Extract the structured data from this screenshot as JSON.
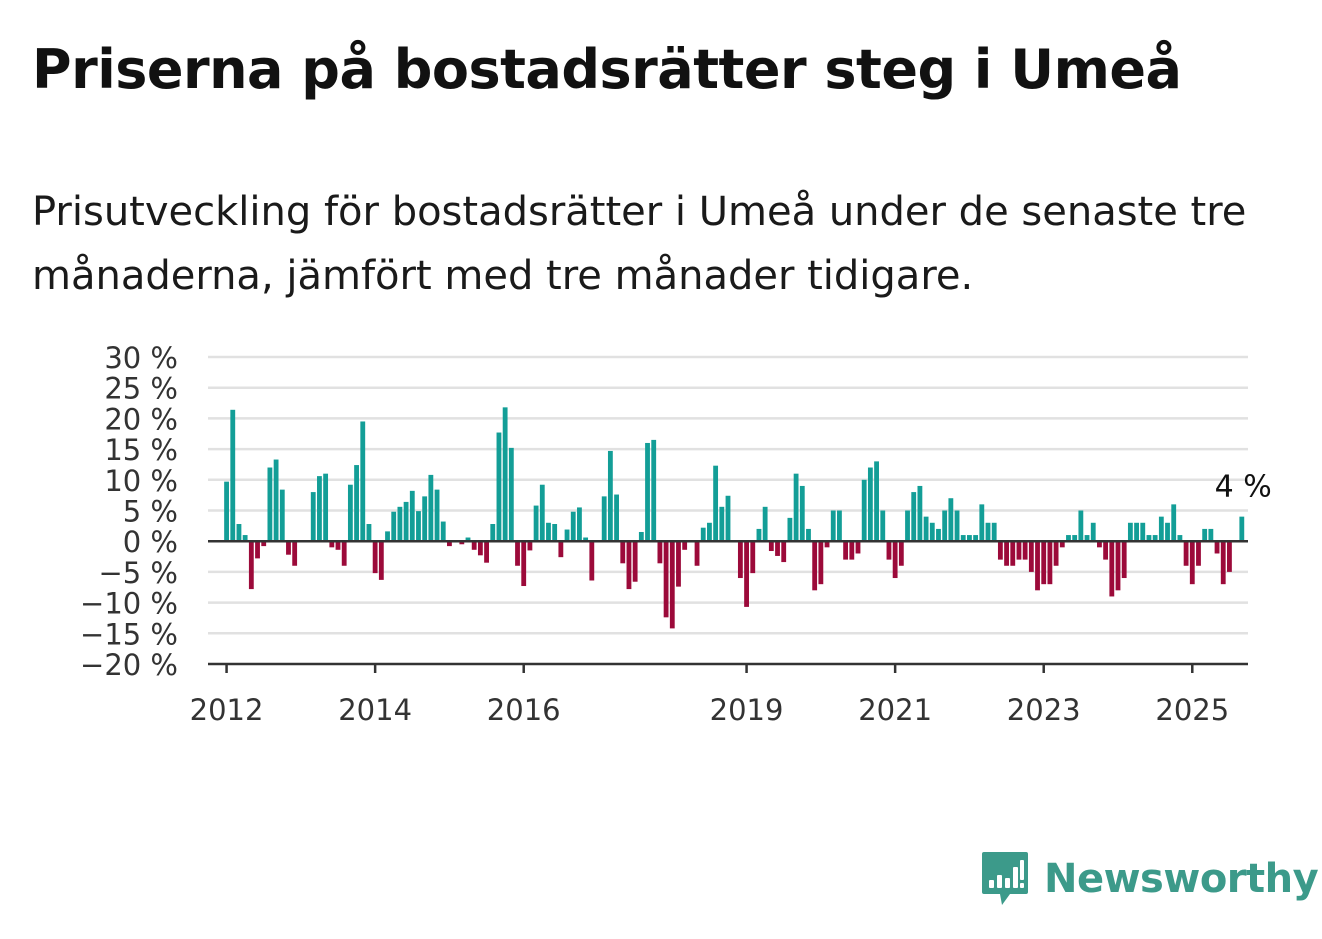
{
  "title": "Priserna på bostadsrätter steg i Umeå",
  "subtitle": "Prisutveckling för bostadsrätter i Umeå under de senaste tre månaderna, jämfört med tre månader tidigare.",
  "brand": {
    "name": "Newsworthy",
    "icon": "bar-chart-bubble-icon",
    "color": "#3c9a8a"
  },
  "colors": {
    "positive": "#139e97",
    "negative": "#9c0a3a",
    "grid": "#e1e1e1",
    "axis": "#333333"
  },
  "chart_data": {
    "type": "bar",
    "title": "Priserna på bostadsrätter steg i Umeå",
    "xlabel": "",
    "ylabel": "",
    "ylim": [
      -20,
      30
    ],
    "y_ticks": [
      30,
      25,
      20,
      15,
      10,
      5,
      0,
      -5,
      -10,
      -15,
      -20
    ],
    "y_tick_labels": [
      "30 %",
      "25 %",
      "20 %",
      "15 %",
      "10 %",
      "5 %",
      "0 %",
      "−5 %",
      "−10 %",
      "−15 %",
      "−20 %"
    ],
    "x_ticks": [
      "2012",
      "2014",
      "2016",
      "2019",
      "2021",
      "2023",
      "2025"
    ],
    "x_range": [
      "2011-10",
      "2025-10"
    ],
    "grid": true,
    "annotation": {
      "text": "4 %",
      "target": "last"
    },
    "series": [
      {
        "values": [
          {
            "x": "2012-01",
            "y": 9.7
          },
          {
            "x": "2012-02",
            "y": 21.4
          },
          {
            "x": "2012-03",
            "y": 2.8
          },
          {
            "x": "2012-04",
            "y": 1.0
          },
          {
            "x": "2012-05",
            "y": -7.8
          },
          {
            "x": "2012-06",
            "y": -2.8
          },
          {
            "x": "2012-07",
            "y": -0.8
          },
          {
            "x": "2012-08",
            "y": 12.0
          },
          {
            "x": "2012-09",
            "y": 13.3
          },
          {
            "x": "2012-10",
            "y": 8.4
          },
          {
            "x": "2012-11",
            "y": -2.2
          },
          {
            "x": "2012-12",
            "y": -4.0
          },
          {
            "x": "2013-03",
            "y": 8.0
          },
          {
            "x": "2013-04",
            "y": 10.6
          },
          {
            "x": "2013-05",
            "y": 11.0
          },
          {
            "x": "2013-06",
            "y": -1.0
          },
          {
            "x": "2013-07",
            "y": -1.4
          },
          {
            "x": "2013-08",
            "y": -4.0
          },
          {
            "x": "2013-09",
            "y": 9.2
          },
          {
            "x": "2013-10",
            "y": 12.4
          },
          {
            "x": "2013-11",
            "y": 19.5
          },
          {
            "x": "2013-12",
            "y": 2.8
          },
          {
            "x": "2014-01",
            "y": -5.2
          },
          {
            "x": "2014-02",
            "y": -6.3
          },
          {
            "x": "2014-03",
            "y": 1.6
          },
          {
            "x": "2014-04",
            "y": 4.8
          },
          {
            "x": "2014-05",
            "y": 5.6
          },
          {
            "x": "2014-06",
            "y": 6.4
          },
          {
            "x": "2014-07",
            "y": 8.2
          },
          {
            "x": "2014-08",
            "y": 4.9
          },
          {
            "x": "2014-09",
            "y": 7.3
          },
          {
            "x": "2014-10",
            "y": 10.8
          },
          {
            "x": "2014-11",
            "y": 8.4
          },
          {
            "x": "2014-12",
            "y": 3.2
          },
          {
            "x": "2015-01",
            "y": -0.8
          },
          {
            "x": "2015-02",
            "y": -0.2
          },
          {
            "x": "2015-03",
            "y": -0.5
          },
          {
            "x": "2015-04",
            "y": 0.6
          },
          {
            "x": "2015-05",
            "y": -1.4
          },
          {
            "x": "2015-06",
            "y": -2.3
          },
          {
            "x": "2015-07",
            "y": -3.5
          },
          {
            "x": "2015-08",
            "y": 2.8
          },
          {
            "x": "2015-09",
            "y": 17.7
          },
          {
            "x": "2015-10",
            "y": 21.8
          },
          {
            "x": "2015-11",
            "y": 15.2
          },
          {
            "x": "2015-12",
            "y": -4.0
          },
          {
            "x": "2016-01",
            "y": -7.3
          },
          {
            "x": "2016-02",
            "y": -1.5
          },
          {
            "x": "2016-03",
            "y": 5.8
          },
          {
            "x": "2016-04",
            "y": 9.2
          },
          {
            "x": "2016-05",
            "y": 3.0
          },
          {
            "x": "2016-06",
            "y": 2.8
          },
          {
            "x": "2016-07",
            "y": -2.6
          },
          {
            "x": "2016-08",
            "y": 1.9
          },
          {
            "x": "2016-09",
            "y": 4.8
          },
          {
            "x": "2016-10",
            "y": 5.5
          },
          {
            "x": "2016-11",
            "y": 0.6
          },
          {
            "x": "2016-12",
            "y": -6.4
          },
          {
            "x": "2017-02",
            "y": 7.3
          },
          {
            "x": "2017-03",
            "y": 14.7
          },
          {
            "x": "2017-04",
            "y": 7.6
          },
          {
            "x": "2017-05",
            "y": -3.6
          },
          {
            "x": "2017-06",
            "y": -7.8
          },
          {
            "x": "2017-07",
            "y": -6.6
          },
          {
            "x": "2017-08",
            "y": 1.5
          },
          {
            "x": "2017-09",
            "y": 16.0
          },
          {
            "x": "2017-10",
            "y": 16.5
          },
          {
            "x": "2017-11",
            "y": -3.6
          },
          {
            "x": "2017-12",
            "y": -12.4
          },
          {
            "x": "2018-01",
            "y": -14.2
          },
          {
            "x": "2018-02",
            "y": -7.4
          },
          {
            "x": "2018-03",
            "y": -1.4
          },
          {
            "x": "2018-05",
            "y": -4.0
          },
          {
            "x": "2018-06",
            "y": 2.2
          },
          {
            "x": "2018-07",
            "y": 3.0
          },
          {
            "x": "2018-08",
            "y": 12.3
          },
          {
            "x": "2018-09",
            "y": 5.6
          },
          {
            "x": "2018-10",
            "y": 7.4
          },
          {
            "x": "2018-12",
            "y": -6.0
          },
          {
            "x": "2019-01",
            "y": -10.7
          },
          {
            "x": "2019-02",
            "y": -5.2
          },
          {
            "x": "2019-03",
            "y": 2.0
          },
          {
            "x": "2019-04",
            "y": 5.6
          },
          {
            "x": "2019-05",
            "y": -1.6
          },
          {
            "x": "2019-06",
            "y": -2.4
          },
          {
            "x": "2019-07",
            "y": -3.4
          },
          {
            "x": "2019-08",
            "y": 3.8
          },
          {
            "x": "2019-09",
            "y": 11.0
          },
          {
            "x": "2019-10",
            "y": 9.0
          },
          {
            "x": "2019-11",
            "y": 2.0
          },
          {
            "x": "2019-12",
            "y": -8.0
          },
          {
            "x": "2020-01",
            "y": -7.0
          },
          {
            "x": "2020-02",
            "y": -1.0
          },
          {
            "x": "2020-03",
            "y": 5.0
          },
          {
            "x": "2020-04",
            "y": 5.0
          },
          {
            "x": "2020-05",
            "y": -3.0
          },
          {
            "x": "2020-06",
            "y": -3.0
          },
          {
            "x": "2020-07",
            "y": -2.0
          },
          {
            "x": "2020-08",
            "y": 10.0
          },
          {
            "x": "2020-09",
            "y": 12.0
          },
          {
            "x": "2020-10",
            "y": 13.0
          },
          {
            "x": "2020-11",
            "y": 5.0
          },
          {
            "x": "2020-12",
            "y": -3.0
          },
          {
            "x": "2021-01",
            "y": -6.0
          },
          {
            "x": "2021-02",
            "y": -4.0
          },
          {
            "x": "2021-03",
            "y": 5.0
          },
          {
            "x": "2021-04",
            "y": 8.0
          },
          {
            "x": "2021-05",
            "y": 9.0
          },
          {
            "x": "2021-06",
            "y": 4.0
          },
          {
            "x": "2021-07",
            "y": 3.0
          },
          {
            "x": "2021-08",
            "y": 2.0
          },
          {
            "x": "2021-09",
            "y": 5.0
          },
          {
            "x": "2021-10",
            "y": 7.0
          },
          {
            "x": "2021-11",
            "y": 5.0
          },
          {
            "x": "2021-12",
            "y": 1.0
          },
          {
            "x": "2022-01",
            "y": 1.0
          },
          {
            "x": "2022-02",
            "y": 1.0
          },
          {
            "x": "2022-03",
            "y": 6.0
          },
          {
            "x": "2022-04",
            "y": 3.0
          },
          {
            "x": "2022-05",
            "y": 3.0
          },
          {
            "x": "2022-06",
            "y": -3.0
          },
          {
            "x": "2022-07",
            "y": -4.0
          },
          {
            "x": "2022-08",
            "y": -4.0
          },
          {
            "x": "2022-09",
            "y": -3.0
          },
          {
            "x": "2022-10",
            "y": -3.0
          },
          {
            "x": "2022-11",
            "y": -5.0
          },
          {
            "x": "2022-12",
            "y": -8.0
          },
          {
            "x": "2023-01",
            "y": -7.0
          },
          {
            "x": "2023-02",
            "y": -7.0
          },
          {
            "x": "2023-03",
            "y": -4.0
          },
          {
            "x": "2023-04",
            "y": -1.0
          },
          {
            "x": "2023-05",
            "y": 1.0
          },
          {
            "x": "2023-06",
            "y": 1.0
          },
          {
            "x": "2023-07",
            "y": 5.0
          },
          {
            "x": "2023-08",
            "y": 1.0
          },
          {
            "x": "2023-09",
            "y": 3.0
          },
          {
            "x": "2023-10",
            "y": -1.0
          },
          {
            "x": "2023-11",
            "y": -3.0
          },
          {
            "x": "2023-12",
            "y": -9.0
          },
          {
            "x": "2024-01",
            "y": -8.0
          },
          {
            "x": "2024-02",
            "y": -6.0
          },
          {
            "x": "2024-03",
            "y": 3.0
          },
          {
            "x": "2024-04",
            "y": 3.0
          },
          {
            "x": "2024-05",
            "y": 3.0
          },
          {
            "x": "2024-06",
            "y": 1.0
          },
          {
            "x": "2024-07",
            "y": 1.0
          },
          {
            "x": "2024-08",
            "y": 4.0
          },
          {
            "x": "2024-09",
            "y": 3.0
          },
          {
            "x": "2024-10",
            "y": 6.0
          },
          {
            "x": "2024-11",
            "y": 1.0
          },
          {
            "x": "2024-12",
            "y": -4.0
          },
          {
            "x": "2025-01",
            "y": -7.0
          },
          {
            "x": "2025-02",
            "y": -4.0
          },
          {
            "x": "2025-03",
            "y": 2.0
          },
          {
            "x": "2025-04",
            "y": 2.0
          },
          {
            "x": "2025-05",
            "y": -2.0
          },
          {
            "x": "2025-06",
            "y": -7.0
          },
          {
            "x": "2025-07",
            "y": -5.0
          },
          {
            "x": "2025-09",
            "y": 4.0
          }
        ]
      }
    ]
  }
}
